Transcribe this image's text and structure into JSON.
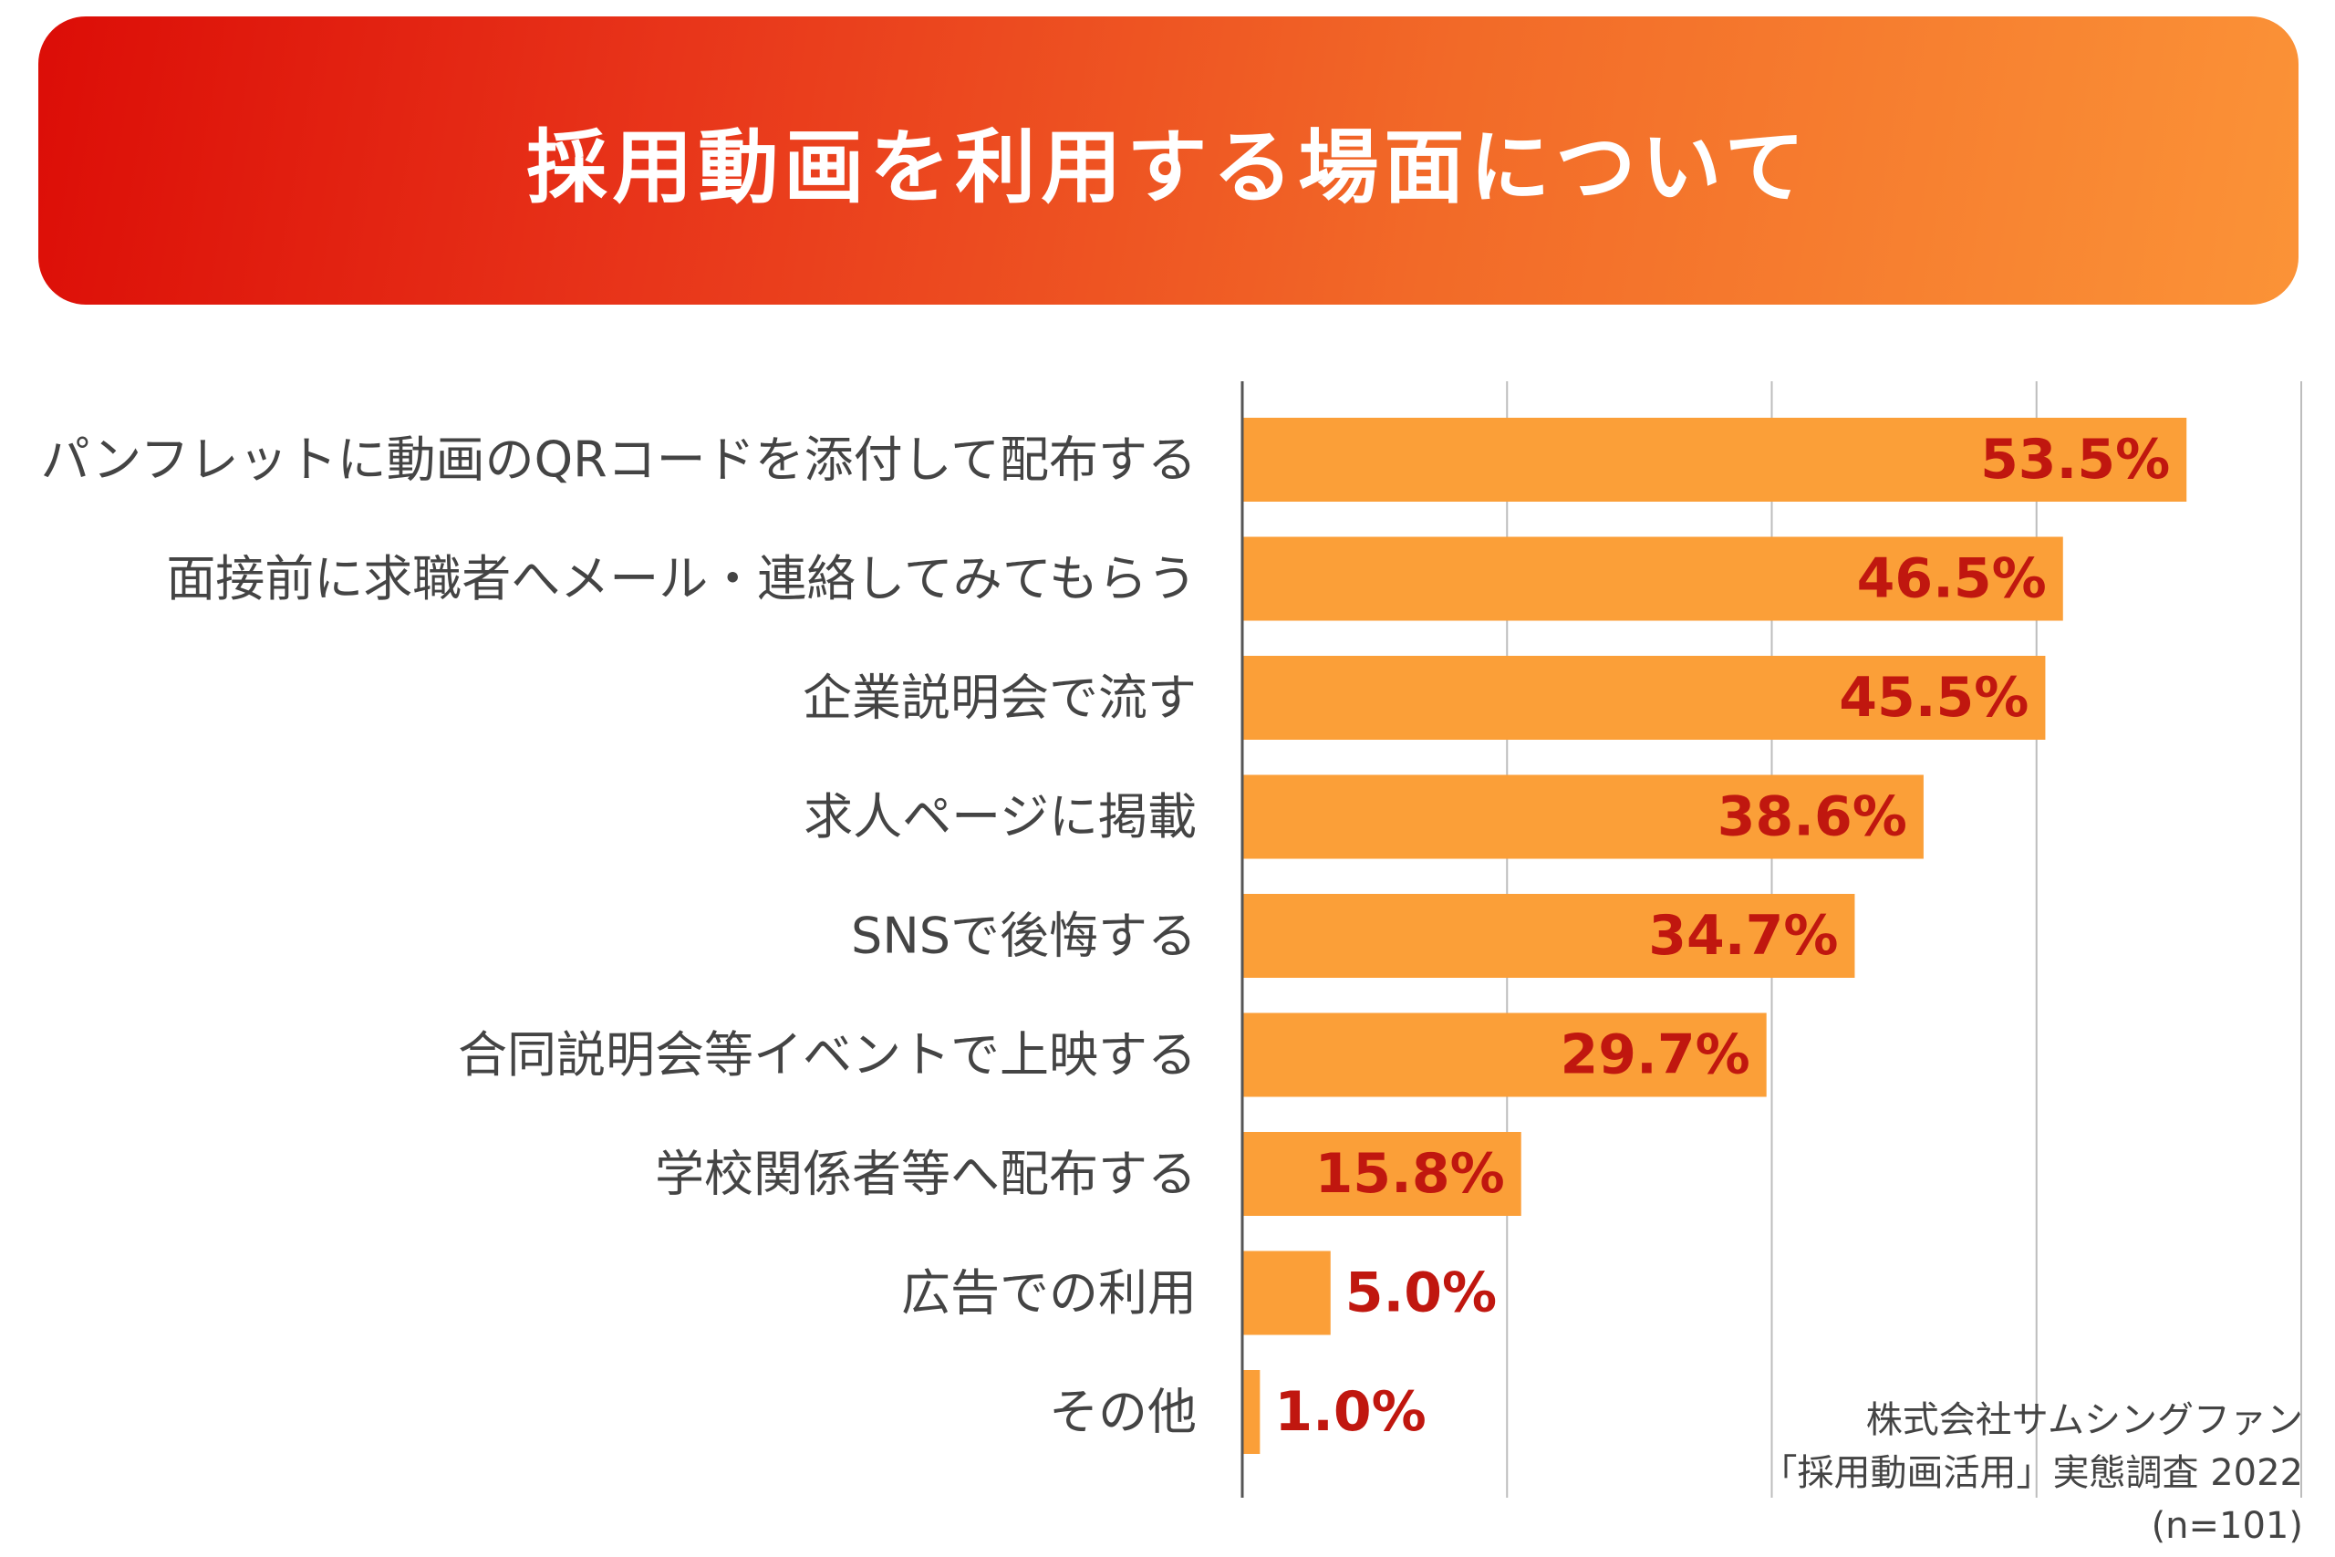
{
  "header": {
    "title": "採用動画を利用する場面について"
  },
  "chart_data": {
    "type": "bar",
    "orientation": "horizontal",
    "title": "採用動画を利用する場面について",
    "categories": [
      "パンフレットに動画のQRコードを添付して配布する",
      "面接前に求職者へメール・連絡してみてもらう",
      "企業説明会で流す",
      "求人ページに掲載",
      "SNSで後悔する",
      "合同説明会等イベントで上映する",
      "学校関係者等へ配布する",
      "広告での利用",
      "その他"
    ],
    "values": [
      53.5,
      46.5,
      45.5,
      38.6,
      34.7,
      29.7,
      15.8,
      5.0,
      1.0
    ],
    "value_labels": [
      "53.5%",
      "46.5%",
      "45.5%",
      "38.6%",
      "34.7%",
      "29.7%",
      "15.8%",
      "5.0%",
      "1.0%"
    ],
    "xlim": [
      0,
      60
    ],
    "gridlines": [
      15,
      30,
      45,
      60
    ],
    "grid": true,
    "bar_color": "#fb9f38",
    "value_label_color": "#c0170f"
  },
  "source": {
    "line1": "株式会社サムシングファン",
    "line2": "「採用動画活用」実態調査 2022",
    "line3": "(n=101)"
  }
}
